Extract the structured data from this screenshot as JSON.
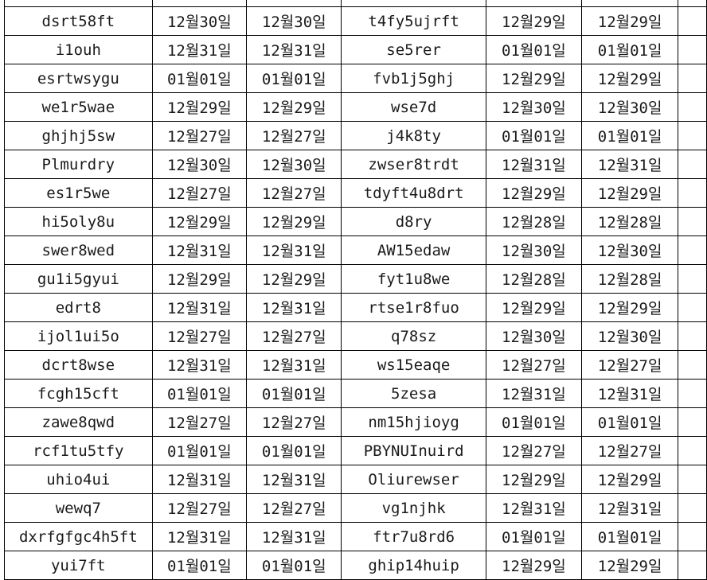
{
  "table": {
    "columns": [
      "item-name-left",
      "date-left-1",
      "date-left-2",
      "item-name-right",
      "date-right-1",
      "date-right-2"
    ],
    "rows": [
      [
        "dsrt58ft",
        "12월30일",
        "12월30일",
        "t4fy5ujrft",
        "12월29일",
        "12월29일"
      ],
      [
        "i1ouh",
        "12월31일",
        "12월31일",
        "se5rer",
        "01월01일",
        "01월01일"
      ],
      [
        "esrtwsygu",
        "01월01일",
        "01월01일",
        "fvb1j5ghj",
        "12월29일",
        "12월29일"
      ],
      [
        "we1r5wae",
        "12월29일",
        "12월29일",
        "wse7d",
        "12월30일",
        "12월30일"
      ],
      [
        "ghjhj5sw",
        "12월27일",
        "12월27일",
        "j4k8ty",
        "01월01일",
        "01월01일"
      ],
      [
        "Plmurdry",
        "12월30일",
        "12월30일",
        "zwser8trdt",
        "12월31일",
        "12월31일"
      ],
      [
        "es1r5we",
        "12월27일",
        "12월27일",
        "tdyft4u8drt",
        "12월29일",
        "12월29일"
      ],
      [
        "hi5oly8u",
        "12월29일",
        "12월29일",
        "d8ry",
        "12월28일",
        "12월28일"
      ],
      [
        "swer8wed",
        "12월31일",
        "12월31일",
        "AW15edaw",
        "12월30일",
        "12월30일"
      ],
      [
        "gu1i5gyui",
        "12월29일",
        "12월29일",
        "fyt1u8we",
        "12월28일",
        "12월28일"
      ],
      [
        "edrt8",
        "12월31일",
        "12월31일",
        "rtse1r8fuo",
        "12월29일",
        "12월29일"
      ],
      [
        "ijol1ui5o",
        "12월27일",
        "12월27일",
        "q78sz",
        "12월30일",
        "12월30일"
      ],
      [
        "dcrt8wse",
        "12월31일",
        "12월31일",
        "ws15eaqe",
        "12월27일",
        "12월27일"
      ],
      [
        "fcgh15cft",
        "01월01일",
        "01월01일",
        "5zesa",
        "12월31일",
        "12월31일"
      ],
      [
        "zawe8qwd",
        "12월27일",
        "12월27일",
        "nm15hjioyg",
        "01월01일",
        "01월01일"
      ],
      [
        "rcf1tu5tfy",
        "01월01일",
        "01월01일",
        "PBYNUInuird",
        "12월27일",
        "12월27일"
      ],
      [
        "uhio4ui",
        "12월31일",
        "12월31일",
        "Oliurewser",
        "12월29일",
        "12월29일"
      ],
      [
        "wewq7",
        "12월27일",
        "12월27일",
        "vg1njhk",
        "12월31일",
        "12월31일"
      ],
      [
        "dxrfgfgc4h5ft",
        "12월31일",
        "12월31일",
        "ftr7u8rd6",
        "01월01일",
        "01월01일"
      ],
      [
        "yui7ft",
        "01월01일",
        "01월01일",
        "ghip14huip",
        "12월29일",
        "12월29일"
      ]
    ],
    "colors": {
      "grid_line": "#000000",
      "text": "#1a1a1a",
      "background": "#ffffff"
    }
  }
}
